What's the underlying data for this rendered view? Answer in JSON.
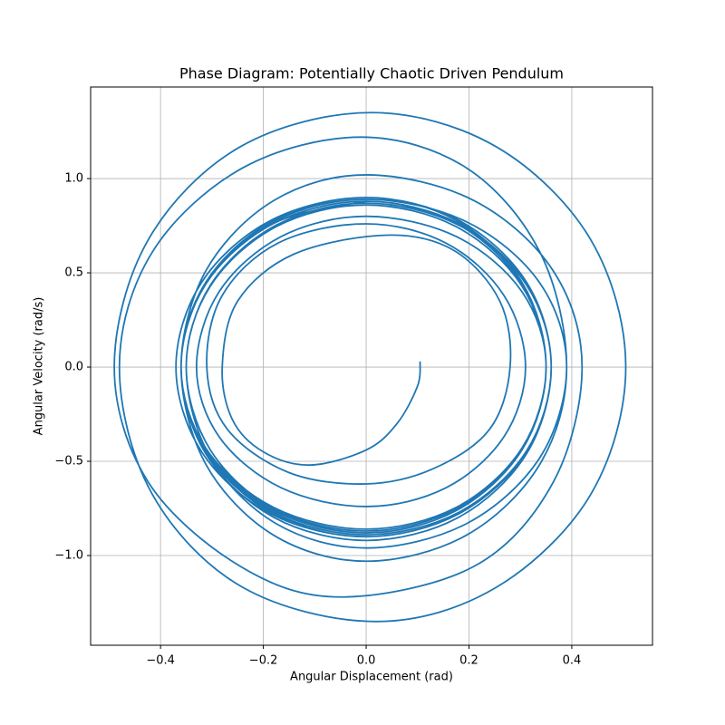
{
  "chart_data": {
    "type": "line",
    "title": "Phase Diagram: Potentially Chaotic Driven Pendulum",
    "xlabel": "Angular Displacement (rad)",
    "ylabel": "Angular Velocity (rad/s)",
    "color": "#1f77b4",
    "grid": true,
    "xlim": [
      -0.536,
      0.557
    ],
    "ylim": [
      -1.476,
      1.486
    ],
    "xticks": [
      {
        "value": -0.4,
        "label": "−0.4"
      },
      {
        "value": -0.2,
        "label": "−0.2"
      },
      {
        "value": 0,
        "label": "0.0"
      },
      0.2,
      0.4
    ],
    "yticks": [
      {
        "value": -1.0,
        "label": "−1.0"
      },
      {
        "value": -0.5,
        "label": "−0.5"
      },
      {
        "value": 0,
        "label": "0.0"
      },
      0.5,
      {
        "value": 1.0,
        "label": "1.0"
      }
    ],
    "x": [
      0.105,
      0.1,
      0.06,
      0,
      -0.11,
      -0.2,
      -0.26,
      -0.28,
      -0.25,
      -0.14,
      0.04,
      0.17,
      0.26,
      0.28,
      0.24,
      0.13,
      0,
      -0.15,
      -0.27,
      -0.31,
      -0.28,
      -0.17,
      0,
      0.155,
      0.268,
      0.31,
      0.268,
      0.155,
      0,
      -0.165,
      -0.286,
      -0.33,
      -0.286,
      -0.165,
      0,
      0.175,
      0.303,
      0.35,
      0.303,
      0.175,
      0,
      -0.18,
      -0.312,
      -0.36,
      -0.312,
      -0.18,
      0,
      0.18,
      0.312,
      0.36,
      0.312,
      0.18,
      0,
      -0.185,
      -0.32,
      -0.37,
      -0.32,
      -0.185,
      0,
      0.175,
      0.303,
      0.35,
      0.303,
      0.175,
      0,
      -0.18,
      -0.312,
      -0.36,
      -0.312,
      -0.18,
      0,
      0.21,
      0.364,
      0.42,
      0.364,
      0.21,
      -0.05,
      -0.245,
      -0.424,
      -0.49,
      -0.424,
      -0.245,
      0.01,
      0.253,
      0.437,
      0.505,
      0.437,
      0.253,
      0.02,
      -0.24,
      -0.416,
      -0.48,
      -0.416,
      -0.24,
      -0.01,
      0.195,
      0.338,
      0.39,
      0.338,
      0.195,
      0,
      -0.18,
      -0.312,
      -0.36,
      -0.312,
      -0.18,
      0,
      0.18,
      0.312,
      0.36,
      0.312,
      0.18,
      0,
      -0.18,
      -0.312,
      -0.36,
      -0.312,
      -0.18,
      0,
      0.175,
      0.303,
      0.35,
      0.303,
      0.175,
      0,
      -0.175,
      -0.303,
      -0.35,
      -0.303,
      -0.175,
      0,
      0.18,
      0.312,
      0.36,
      0.312,
      0.18,
      0,
      -0.18,
      -0.312,
      -0.36,
      -0.312,
      -0.18,
      0,
      0.195,
      0.338,
      0.39,
      0.338,
      0.195,
      0,
      -0.175,
      -0.303,
      -0.35,
      -0.303,
      -0.175,
      0,
      0.175,
      0.303,
      0.35,
      0.303,
      0.175,
      0,
      -0.18,
      -0.312,
      -0.36,
      -0.312,
      -0.18,
      0,
      0.18,
      0.312,
      0.36,
      0.312,
      0.18,
      0,
      -0.18,
      -0.312,
      -0.36,
      -0.312,
      -0.18,
      0
    ],
    "values": [
      0.03,
      -0.1,
      -0.3,
      -0.44,
      -0.52,
      -0.45,
      -0.28,
      0,
      0.35,
      0.6,
      0.7,
      0.62,
      0.35,
      0,
      -0.33,
      -0.54,
      -0.62,
      -0.56,
      -0.33,
      0,
      0.38,
      0.66,
      0.76,
      0.658,
      0.38,
      0,
      -0.37,
      -0.641,
      -0.74,
      -0.641,
      -0.37,
      0,
      0.4,
      0.693,
      0.8,
      0.693,
      0.4,
      0,
      -0.43,
      -0.745,
      -0.86,
      -0.745,
      -0.43,
      0,
      0.44,
      0.762,
      0.88,
      0.762,
      0.44,
      0,
      -0.45,
      -0.779,
      -0.9,
      -0.779,
      -0.45,
      0,
      0.45,
      0.779,
      0.9,
      0.779,
      0.45,
      0,
      -0.44,
      -0.762,
      -0.88,
      -0.762,
      -0.44,
      0,
      0.51,
      0.883,
      1.02,
      0.883,
      0.51,
      0,
      -0.61,
      -1.057,
      -1.22,
      -1.057,
      -0.61,
      0,
      0.675,
      1.169,
      1.35,
      1.169,
      0.675,
      0,
      -0.675,
      -1.169,
      -1.35,
      -1.169,
      -0.675,
      0,
      0.61,
      1.057,
      1.22,
      1.057,
      0.61,
      0,
      -0.515,
      -0.892,
      -1.03,
      -0.892,
      -0.515,
      0,
      0.45,
      0.779,
      0.9,
      0.779,
      0.45,
      0,
      -0.45,
      -0.779,
      -0.9,
      -0.779,
      -0.45,
      0,
      0.44,
      0.762,
      0.88,
      0.762,
      0.44,
      0,
      -0.44,
      -0.762,
      -0.88,
      -0.762,
      -0.44,
      0,
      0.435,
      0.753,
      0.87,
      0.753,
      0.435,
      0,
      -0.46,
      -0.797,
      -0.92,
      -0.797,
      -0.46,
      0,
      0.445,
      0.771,
      0.89,
      0.771,
      0.445,
      0,
      -0.48,
      -0.831,
      -0.96,
      -0.831,
      -0.48,
      0,
      0.43,
      0.745,
      0.86,
      0.745,
      0.43,
      0,
      -0.435,
      -0.753,
      -0.87,
      -0.753,
      -0.435,
      0,
      0.45,
      0.779,
      0.9,
      0.779,
      0.45,
      0,
      -0.445,
      -0.771,
      -0.89,
      -0.771,
      -0.445,
      0,
      0.44,
      0.762,
      0.88
    ]
  }
}
